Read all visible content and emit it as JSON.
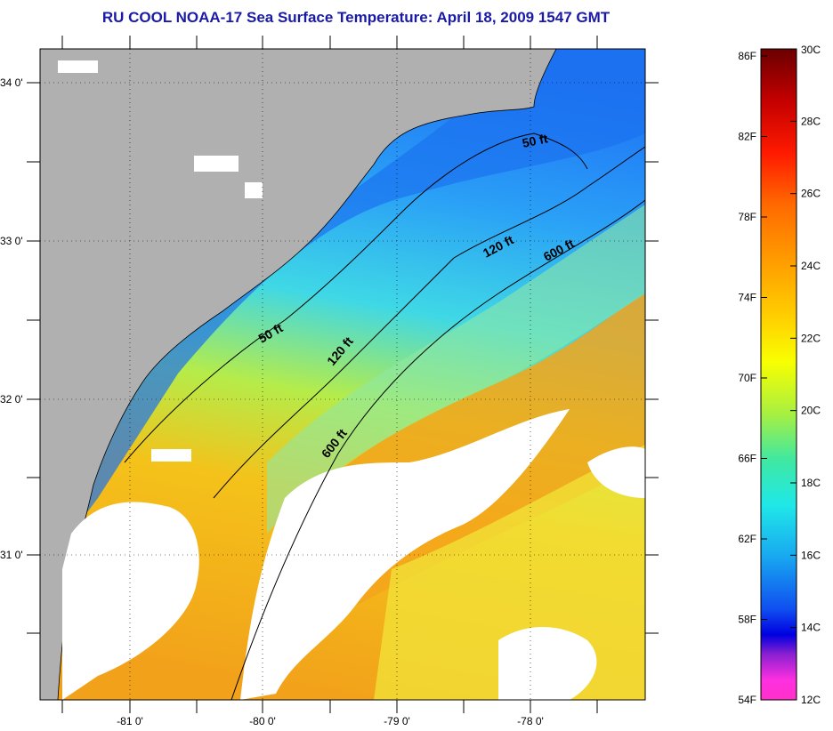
{
  "title": "RU COOL  NOAA-17  Sea Surface Temperature:  April 18, 2009 1547 GMT",
  "map": {
    "lat_labels": [
      "34 0'",
      "33 0'",
      "32 0'",
      "31 0'"
    ],
    "lon_labels": [
      "-81 0'",
      "-80 0'",
      "-79 0'",
      "-78 0'"
    ],
    "isobath_labels": [
      "50 ft",
      "120 ft",
      "600 ft",
      "50 ft",
      "120 ft",
      "600 ft"
    ],
    "colors": {
      "land": "#b0b0b0",
      "cloud": "#ffffff",
      "frame": "#000000"
    }
  },
  "colorbar": {
    "f_labels": [
      "86F",
      "82F",
      "78F",
      "74F",
      "70F",
      "66F",
      "62F",
      "58F",
      "54F"
    ],
    "c_labels": [
      "30C",
      "28C",
      "26C",
      "24C",
      "22C",
      "20C",
      "18C",
      "16C",
      "14C",
      "12C"
    ],
    "range_f": [
      54,
      86
    ],
    "range_c": [
      12,
      30
    ]
  }
}
